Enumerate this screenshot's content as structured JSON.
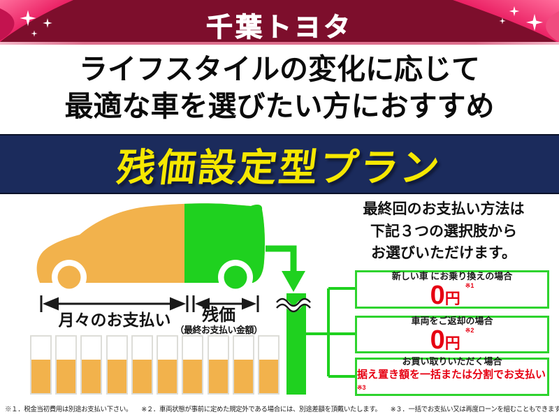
{
  "header": {
    "brand": "千葉トヨタ"
  },
  "headline": {
    "line1": "ライフスタイルの変化に応じて",
    "line2": "最適な車を選びたい方におすすめ"
  },
  "banner": {
    "title": "残価設定型プラン"
  },
  "diagram": {
    "monthly_label": "月々のお支払い",
    "residual_label": "残価",
    "residual_sublabel": "（最終お支払い金額）",
    "bars": {
      "count": 10,
      "fill_percent": 59
    },
    "icons": [
      "ribbon-left-icon",
      "ribbon-right-icon",
      "sparkle-icon",
      "flow-down-arrow-icon",
      "bar-break-icon"
    ]
  },
  "options": {
    "intro_line1": "最終回のお支払い方法は",
    "intro_line2": "下記３つの選択肢から",
    "intro_line3": "お選びいただけます。",
    "items": [
      {
        "label": "新しい車 にお乗り換えの場合",
        "value": "0",
        "unit": "円",
        "note": "※1"
      },
      {
        "label": "車両をご返却の場合",
        "value": "0",
        "unit": "円",
        "note": "※2"
      },
      {
        "label": "お買い取りいただく場合",
        "value_text": "据え置き額を一括または分割でお支払い",
        "note": "※3"
      }
    ]
  },
  "footnotes": {
    "note1": "※１．税金当初費用は別途お支払い下さい。",
    "note2": "※２．車両状態が事前に定めた規定外である場合には、別途差額を頂戴いたします。",
    "note3": "※３．一括でお支払い又は再度ローンを組むこともできます。"
  },
  "colors": {
    "maroon": "#7d0e2c",
    "ribbon_pink": "#e8175d",
    "navy": "#1b2b5c",
    "yellow": "#f6e800",
    "orange": "#f2b24c",
    "green": "#1fd11f",
    "box_border": "#2ed32e",
    "red": "#e60012"
  }
}
